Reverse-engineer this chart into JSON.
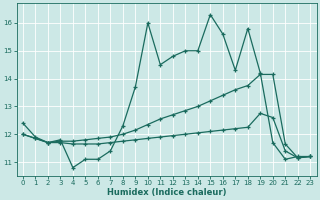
{
  "xlabel": "Humidex (Indice chaleur)",
  "bg_color": "#cce8e6",
  "grid_color": "#ffffff",
  "line_color": "#1a6b5e",
  "xlim": [
    -0.5,
    23.5
  ],
  "ylim": [
    10.5,
    16.7
  ],
  "yticks": [
    11,
    12,
    13,
    14,
    15,
    16
  ],
  "xticks": [
    0,
    1,
    2,
    3,
    4,
    5,
    6,
    7,
    8,
    9,
    10,
    11,
    12,
    13,
    14,
    15,
    16,
    17,
    18,
    19,
    20,
    21,
    22,
    23
  ],
  "s1_x": [
    0,
    1,
    2,
    3,
    4,
    5,
    6,
    7,
    8,
    9,
    10,
    11,
    12,
    13,
    14,
    15,
    16,
    17,
    18,
    19,
    20,
    21,
    22,
    23
  ],
  "s1_y": [
    12.4,
    11.9,
    11.7,
    11.8,
    10.8,
    11.1,
    11.1,
    11.4,
    12.3,
    13.7,
    16.0,
    14.5,
    14.8,
    15.0,
    15.0,
    16.3,
    15.6,
    14.3,
    15.8,
    14.2,
    11.7,
    11.1,
    11.2,
    11.2
  ],
  "s2_x": [
    0,
    1,
    2,
    3,
    4,
    5,
    6,
    7,
    8,
    9,
    10,
    11,
    12,
    13,
    14,
    15,
    16,
    17,
    18,
    19,
    20,
    21,
    22,
    23
  ],
  "s2_y": [
    12.0,
    11.85,
    11.7,
    11.75,
    11.75,
    11.8,
    11.85,
    11.9,
    12.0,
    12.15,
    12.35,
    12.55,
    12.7,
    12.85,
    13.0,
    13.2,
    13.4,
    13.6,
    13.75,
    14.15,
    14.15,
    11.65,
    11.15,
    11.2
  ],
  "s3_x": [
    0,
    1,
    2,
    3,
    4,
    5,
    6,
    7,
    8,
    9,
    10,
    11,
    12,
    13,
    14,
    15,
    16,
    17,
    18,
    19,
    20,
    21,
    22,
    23
  ],
  "s3_y": [
    12.0,
    11.85,
    11.7,
    11.7,
    11.65,
    11.65,
    11.65,
    11.7,
    11.75,
    11.8,
    11.85,
    11.9,
    11.95,
    12.0,
    12.05,
    12.1,
    12.15,
    12.2,
    12.25,
    12.75,
    12.6,
    11.4,
    11.15,
    11.2
  ]
}
